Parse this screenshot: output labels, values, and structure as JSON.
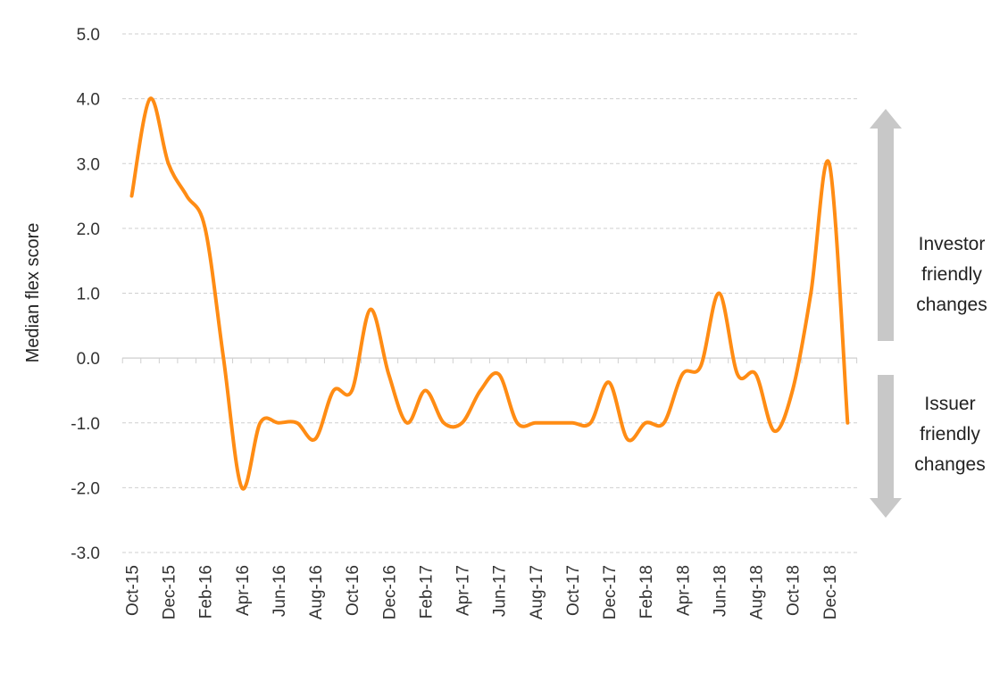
{
  "chart_data": {
    "type": "line",
    "title": "",
    "xlabel": "",
    "ylabel": "Median flex score",
    "ylim": [
      -3.0,
      5.0
    ],
    "y_ticks": [
      "5.0",
      "4.0",
      "3.0",
      "2.0",
      "1.0",
      "0.0",
      "-1.0",
      "-2.0",
      "-3.0"
    ],
    "y_tick_values": [
      5,
      4,
      3,
      2,
      1,
      0,
      -1,
      -2,
      -3
    ],
    "grid": "horizontal dashed",
    "x_tick_labels": [
      "Oct-15",
      "Dec-15",
      "Feb-16",
      "Apr-16",
      "Jun-16",
      "Aug-16",
      "Oct-16",
      "Dec-16",
      "Feb-17",
      "Apr-17",
      "Jun-17",
      "Aug-17",
      "Oct-17",
      "Dec-17",
      "Feb-18",
      "Apr-18",
      "Jun-18",
      "Aug-18",
      "Oct-18",
      "Dec-18"
    ],
    "x": [
      "Oct-15",
      "Nov-15",
      "Dec-15",
      "Jan-16",
      "Feb-16",
      "Mar-16",
      "Apr-16",
      "May-16",
      "Jun-16",
      "Jul-16",
      "Aug-16",
      "Sep-16",
      "Oct-16",
      "Nov-16",
      "Dec-16",
      "Jan-17",
      "Feb-17",
      "Mar-17",
      "Apr-17",
      "May-17",
      "Jun-17",
      "Jul-17",
      "Aug-17",
      "Sep-17",
      "Oct-17",
      "Nov-17",
      "Dec-17",
      "Jan-18",
      "Feb-18",
      "Mar-18",
      "Apr-18",
      "May-18",
      "Jun-18",
      "Jul-18",
      "Aug-18",
      "Sep-18",
      "Oct-18",
      "Nov-18",
      "Dec-18",
      "Jan-19"
    ],
    "series": [
      {
        "color": "#FF8C14",
        "values": [
          2.5,
          4.0,
          3.0,
          2.5,
          2.0,
          0.0,
          -2.0,
          -1.0,
          -1.0,
          -1.0,
          -1.25,
          -0.5,
          -0.5,
          0.75,
          -0.25,
          -1.0,
          -0.5,
          -1.0,
          -1.0,
          -0.5,
          -0.25,
          -1.0,
          -1.0,
          -1.0,
          -1.0,
          -1.0,
          -0.375,
          -1.25,
          -1.0,
          -1.0,
          -0.25,
          -0.125,
          1.0,
          -0.25,
          -0.25,
          -1.125,
          -0.5,
          1.0,
          3.0,
          -1.0
        ]
      }
    ],
    "annotations": {
      "up": {
        "lines": [
          "Investor",
          "friendly",
          "changes"
        ],
        "arrow_color": "#C8C8C8"
      },
      "down": {
        "lines": [
          "Issuer",
          "friendly",
          "changes"
        ],
        "arrow_color": "#C8C8C8"
      }
    }
  }
}
